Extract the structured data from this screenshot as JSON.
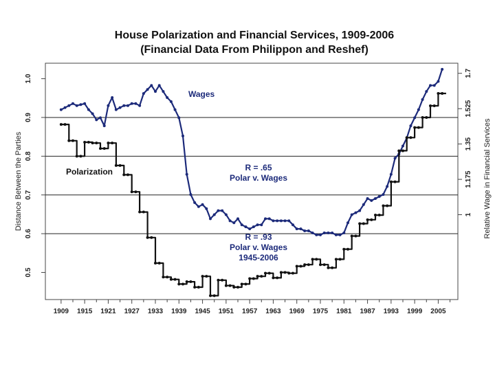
{
  "chart_data": {
    "type": "line",
    "title": "House Polarization and Financial Services, 1909-2006",
    "subtitle": "(Financial Data From Philippon and Reshef)",
    "ylabel_left": "Distance Between the Parties",
    "ylabel_right": "Relative Wage in Financial Services",
    "x_ticks": [
      1909,
      1915,
      1921,
      1927,
      1933,
      1939,
      1945,
      1951,
      1957,
      1963,
      1969,
      1975,
      1981,
      1987,
      1993,
      1999,
      2005
    ],
    "y_left_ticks": [
      "0.5",
      "0.6",
      "0.7",
      "0.8",
      "0.9",
      "1.0"
    ],
    "y_left_values": [
      0.5,
      0.6,
      0.7,
      0.8,
      0.9,
      1.0
    ],
    "y_right_ticks": [
      "1",
      "1.175",
      "1.35",
      "1.525",
      "1.7"
    ],
    "y_right_values": [
      1.0,
      1.175,
      1.35,
      1.525,
      1.7
    ],
    "xlim": [
      1905,
      2010
    ],
    "ylim_left": [
      0.43,
      1.04
    ],
    "ylim_right": [
      0.58,
      1.75
    ],
    "gridlines_left": [
      0.6,
      0.7,
      0.8,
      0.9
    ],
    "annotations": [
      {
        "id": "wages",
        "text": "Wages",
        "color": "#1c2a7a"
      },
      {
        "id": "polar",
        "text": "Polarization",
        "color": "#111111"
      },
      {
        "id": "r1a",
        "text": "R = .65",
        "color": "#1c2a7a"
      },
      {
        "id": "r1b",
        "text": "Polar v. Wages",
        "color": "#1c2a7a"
      },
      {
        "id": "r2a",
        "text": "R = .93",
        "color": "#1c2a7a"
      },
      {
        "id": "r2b",
        "text": "Polar v. Wages",
        "color": "#1c2a7a"
      },
      {
        "id": "r2c",
        "text": "1945-2006",
        "color": "#1c2a7a"
      }
    ],
    "series": [
      {
        "name": "Wages",
        "axis": "right",
        "color": "#1c2a7a",
        "x": [
          1909,
          1910,
          1911,
          1912,
          1913,
          1914,
          1915,
          1916,
          1917,
          1918,
          1919,
          1920,
          1921,
          1922,
          1923,
          1924,
          1925,
          1926,
          1927,
          1928,
          1929,
          1930,
          1931,
          1932,
          1933,
          1934,
          1935,
          1936,
          1937,
          1938,
          1939,
          1940,
          1941,
          1942,
          1943,
          1944,
          1945,
          1946,
          1947,
          1948,
          1949,
          1950,
          1951,
          1952,
          1953,
          1954,
          1955,
          1956,
          1957,
          1958,
          1959,
          1960,
          1961,
          1962,
          1963,
          1964,
          1965,
          1966,
          1967,
          1968,
          1969,
          1970,
          1971,
          1972,
          1973,
          1974,
          1975,
          1976,
          1977,
          1978,
          1979,
          1980,
          1981,
          1982,
          1983,
          1984,
          1985,
          1986,
          1987,
          1988,
          1989,
          1990,
          1991,
          1992,
          1993,
          1994,
          1995,
          1996,
          1997,
          1998,
          1999,
          2000,
          2001,
          2002,
          2003,
          2004,
          2005,
          2006
        ],
        "y": [
          1.52,
          1.53,
          1.54,
          1.55,
          1.54,
          1.545,
          1.55,
          1.52,
          1.5,
          1.47,
          1.48,
          1.44,
          1.54,
          1.58,
          1.52,
          1.53,
          1.54,
          1.54,
          1.55,
          1.55,
          1.54,
          1.6,
          1.62,
          1.64,
          1.61,
          1.64,
          1.61,
          1.58,
          1.56,
          1.52,
          1.48,
          1.39,
          1.2,
          1.1,
          1.06,
          1.04,
          1.05,
          1.03,
          0.98,
          1.0,
          1.02,
          1.02,
          1.0,
          0.97,
          0.96,
          0.98,
          0.95,
          0.94,
          0.93,
          0.94,
          0.95,
          0.95,
          0.98,
          0.98,
          0.97,
          0.97,
          0.97,
          0.97,
          0.97,
          0.95,
          0.93,
          0.93,
          0.92,
          0.92,
          0.91,
          0.9,
          0.9,
          0.91,
          0.91,
          0.91,
          0.9,
          0.9,
          0.91,
          0.96,
          1.0,
          1.01,
          1.02,
          1.05,
          1.08,
          1.07,
          1.08,
          1.09,
          1.1,
          1.14,
          1.2,
          1.28,
          1.3,
          1.34,
          1.38,
          1.44,
          1.48,
          1.52,
          1.57,
          1.61,
          1.64,
          1.64,
          1.66,
          1.72
        ]
      },
      {
        "name": "Polarization",
        "axis": "left",
        "color": "#111111",
        "x": [
          1909,
          1911,
          1913,
          1915,
          1917,
          1919,
          1921,
          1923,
          1925,
          1927,
          1929,
          1931,
          1933,
          1935,
          1937,
          1939,
          1941,
          1943,
          1945,
          1947,
          1949,
          1951,
          1953,
          1955,
          1957,
          1959,
          1961,
          1963,
          1965,
          1967,
          1969,
          1971,
          1973,
          1975,
          1977,
          1979,
          1981,
          1983,
          1985,
          1987,
          1989,
          1991,
          1993,
          1995,
          1997,
          1999,
          2001,
          2003,
          2005
        ],
        "y": [
          0.882,
          0.84,
          0.8,
          0.836,
          0.834,
          0.82,
          0.834,
          0.776,
          0.752,
          0.708,
          0.656,
          0.59,
          0.524,
          0.488,
          0.482,
          0.47,
          0.476,
          0.462,
          0.49,
          0.44,
          0.48,
          0.466,
          0.462,
          0.47,
          0.484,
          0.49,
          0.498,
          0.486,
          0.5,
          0.498,
          0.516,
          0.52,
          0.534,
          0.52,
          0.512,
          0.534,
          0.56,
          0.594,
          0.626,
          0.636,
          0.648,
          0.672,
          0.734,
          0.814,
          0.848,
          0.874,
          0.9,
          0.93,
          0.962
        ]
      }
    ]
  }
}
